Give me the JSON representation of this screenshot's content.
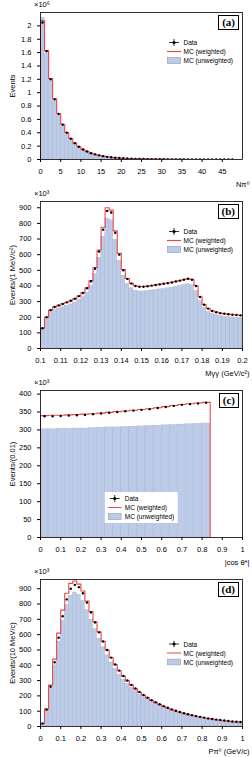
{
  "chart_data": [
    {
      "type": "histogram",
      "panel_label": "(a)",
      "y_multiplier": "×10⁶",
      "x_label": "Nπ⁰",
      "y_label": "Events",
      "xlim": [
        0,
        50
      ],
      "xticks": [
        0,
        5,
        10,
        15,
        20,
        25,
        30,
        35,
        40,
        45
      ],
      "ylim": [
        0,
        2.2
      ],
      "yticks": [
        0,
        0.2,
        0.4,
        0.6,
        0.8,
        1,
        1.2,
        1.4,
        1.6,
        1.8,
        2
      ],
      "grid": false,
      "legend": "upper right",
      "bins": [
        0,
        1,
        2,
        3,
        4,
        5,
        6,
        7,
        8,
        9,
        10,
        11,
        12,
        13,
        14,
        15,
        16,
        17,
        18,
        19,
        20,
        21,
        22,
        23,
        24,
        25,
        26,
        27,
        28,
        29,
        30,
        31,
        32,
        33,
        34,
        35,
        36,
        37,
        38,
        39,
        40,
        41,
        42,
        43,
        44,
        45,
        46,
        47,
        48
      ],
      "series": [
        {
          "name": "Data",
          "type": "scatter",
          "marker": "circle",
          "color": "#000000",
          "values": [
            2.05,
            1.62,
            1.2,
            0.9,
            0.68,
            0.52,
            0.4,
            0.31,
            0.245,
            0.19,
            0.15,
            0.12,
            0.095,
            0.077,
            0.062,
            0.05,
            0.04,
            0.033,
            0.027,
            0.022,
            0.018,
            0.015,
            0.012,
            0.01,
            0.0085,
            0.007,
            0.006,
            0.005,
            0.0042,
            0.0035,
            0.003,
            0.0025,
            0.002,
            0.0017,
            0.0014,
            0.0012,
            0.001,
            0.0008,
            0.0007,
            0.0006,
            0.0005,
            0.0004,
            0.0003,
            0.00025,
            0.0002,
            0.00015,
            0.0001,
            0.0001
          ]
        },
        {
          "name": "MC (weighted)",
          "type": "line",
          "line_style": "solid",
          "color": "#e8474b",
          "values": [
            2.08,
            1.63,
            1.21,
            0.91,
            0.685,
            0.525,
            0.405,
            0.315,
            0.248,
            0.193,
            0.152,
            0.122,
            0.097,
            0.078,
            0.063,
            0.051,
            0.041,
            0.034,
            0.028,
            0.023,
            0.019,
            0.015,
            0.012,
            0.01,
            0.0085,
            0.007,
            0.006,
            0.005,
            0.0042,
            0.0035,
            0.003,
            0.0025,
            0.002,
            0.0017,
            0.0014,
            0.0012,
            0.001,
            0.0008,
            0.0007,
            0.0006,
            0.0005,
            0.0004,
            0.0003,
            0.00025,
            0.0002,
            0.00015,
            0.0001,
            0.0001
          ]
        },
        {
          "name": "MC (unweighted)",
          "type": "bar",
          "color": "#bccbe8",
          "values": [
            2.12,
            1.58,
            1.17,
            0.87,
            0.65,
            0.49,
            0.375,
            0.29,
            0.228,
            0.176,
            0.138,
            0.11,
            0.087,
            0.07,
            0.056,
            0.045,
            0.036,
            0.03,
            0.024,
            0.02,
            0.016,
            0.013,
            0.011,
            0.009,
            0.0075,
            0.0062,
            0.0052,
            0.0044,
            0.0037,
            0.0031,
            0.0026,
            0.0022,
            0.0018,
            0.0015,
            0.0012,
            0.001,
            0.0009,
            0.0007,
            0.0006,
            0.0005,
            0.0004,
            0.0003,
            0.00025,
            0.0002,
            0.00015,
            0.0001,
            0.0001,
            0.0001
          ]
        }
      ]
    },
    {
      "type": "histogram",
      "panel_label": "(b)",
      "y_multiplier": "×10³",
      "x_label": "Mγγ (GeV/c²)",
      "y_label": "Events/(1 MeV/c²)",
      "xlim": [
        0.1,
        0.2
      ],
      "xticks": [
        0.1,
        0.11,
        0.12,
        0.13,
        0.14,
        0.15,
        0.16,
        0.17,
        0.18,
        0.19,
        0.2
      ],
      "ylim": [
        0,
        940
      ],
      "yticks": [
        0,
        100,
        200,
        300,
        400,
        500,
        600,
        700,
        800,
        900
      ],
      "grid": false,
      "legend": "upper right",
      "bins": [
        0.1,
        0.102,
        0.104,
        0.106,
        0.108,
        0.11,
        0.112,
        0.114,
        0.116,
        0.118,
        0.12,
        0.122,
        0.124,
        0.126,
        0.128,
        0.13,
        0.132,
        0.134,
        0.136,
        0.138,
        0.14,
        0.142,
        0.144,
        0.146,
        0.148,
        0.15,
        0.152,
        0.154,
        0.156,
        0.158,
        0.16,
        0.162,
        0.164,
        0.166,
        0.168,
        0.17,
        0.172,
        0.174,
        0.176,
        0.178,
        0.18,
        0.182,
        0.184,
        0.186,
        0.188,
        0.19,
        0.192,
        0.194,
        0.196,
        0.198,
        0.2
      ],
      "series": [
        {
          "name": "Data",
          "type": "scatter",
          "marker": "circle",
          "color": "#000000",
          "values": [
            130,
            200,
            245,
            265,
            275,
            285,
            295,
            305,
            318,
            335,
            355,
            385,
            430,
            510,
            620,
            760,
            880,
            870,
            740,
            600,
            500,
            445,
            415,
            400,
            395,
            395,
            398,
            402,
            406,
            410,
            414,
            418,
            422,
            428,
            434,
            440,
            446,
            440,
            400,
            330,
            280,
            255,
            240,
            232,
            226,
            222,
            219,
            216,
            214,
            212
          ]
        },
        {
          "name": "MC (weighted)",
          "type": "line",
          "line_style": "solid",
          "color": "#e8474b",
          "values": [
            130,
            200,
            246,
            266,
            276,
            286,
            296,
            306,
            319,
            336,
            357,
            388,
            435,
            518,
            630,
            775,
            900,
            885,
            752,
            608,
            505,
            448,
            417,
            401,
            396,
            396,
            399,
            403,
            407,
            411,
            415,
            419,
            423,
            429,
            435,
            441,
            447,
            441,
            401,
            331,
            281,
            256,
            241,
            233,
            227,
            223,
            220,
            217,
            215,
            213
          ]
        },
        {
          "name": "MC (unweighted)",
          "type": "bar",
          "color": "#bccbe8",
          "values": [
            120,
            185,
            228,
            246,
            255,
            264,
            273,
            282,
            294,
            310,
            329,
            357,
            400,
            476,
            580,
            715,
            830,
            820,
            695,
            562,
            466,
            413,
            385,
            370,
            365,
            365,
            367,
            371,
            374,
            378,
            381,
            385,
            389,
            394,
            400,
            405,
            411,
            405,
            368,
            304,
            258,
            235,
            221,
            214,
            208,
            204,
            201,
            199,
            197,
            195
          ]
        }
      ]
    },
    {
      "type": "histogram",
      "panel_label": "(c)",
      "y_multiplier": "×10³",
      "x_label": "|cos θ*|",
      "y_label": "Events/(0.01)",
      "xlim": [
        0,
        1
      ],
      "xticks": [
        0,
        0.1,
        0.2,
        0.3,
        0.4,
        0.5,
        0.6,
        0.7,
        0.8,
        0.9,
        1
      ],
      "ylim": [
        0,
        410
      ],
      "yticks": [
        0,
        50,
        100,
        150,
        200,
        250,
        300,
        350,
        400
      ],
      "grid": false,
      "legend": "lower center",
      "bins": [
        0,
        0.04,
        0.08,
        0.12,
        0.16,
        0.2,
        0.24,
        0.28,
        0.32,
        0.36,
        0.4,
        0.44,
        0.48,
        0.52,
        0.56,
        0.6,
        0.64,
        0.68,
        0.72,
        0.76,
        0.8,
        0.84
      ],
      "series": [
        {
          "name": "Data",
          "type": "scatter",
          "marker": "circle",
          "color": "#000000",
          "values": [
            338,
            338,
            339,
            340,
            341,
            342,
            344,
            346,
            348,
            350,
            352,
            354,
            356,
            358,
            361,
            364,
            367,
            370,
            372,
            374,
            376
          ]
        },
        {
          "name": "MC (weighted)",
          "type": "line",
          "line_style": "solid",
          "color": "#e8474b",
          "values": [
            340,
            341,
            341,
            342,
            343,
            344,
            345,
            347,
            349,
            351,
            353,
            355,
            357,
            359,
            362,
            365,
            368,
            371,
            373,
            375,
            377
          ]
        },
        {
          "name": "MC (unweighted)",
          "type": "bar",
          "color": "#bccbe8",
          "values": [
            302,
            302,
            303,
            303,
            304,
            304,
            305,
            306,
            307,
            307,
            308,
            309,
            310,
            311,
            312,
            313,
            314,
            315,
            316,
            317,
            318
          ]
        }
      ]
    },
    {
      "type": "histogram",
      "panel_label": "(d)",
      "y_multiplier": "×10³",
      "x_label": "Pπ⁰ (GeV/c)",
      "y_label": "Events/(10 MeV/c)",
      "xlim": [
        0,
        1
      ],
      "xticks": [
        0,
        0.1,
        0.2,
        0.3,
        0.4,
        0.5,
        0.6,
        0.7,
        0.8,
        0.9,
        1
      ],
      "ylim": [
        0,
        960
      ],
      "yticks": [
        0,
        100,
        200,
        300,
        400,
        500,
        600,
        700,
        800,
        900
      ],
      "grid": false,
      "legend": "center right",
      "bins": [
        0,
        0.02,
        0.04,
        0.06,
        0.08,
        0.1,
        0.12,
        0.14,
        0.16,
        0.18,
        0.2,
        0.22,
        0.24,
        0.26,
        0.28,
        0.3,
        0.32,
        0.34,
        0.36,
        0.38,
        0.4,
        0.42,
        0.44,
        0.46,
        0.48,
        0.5,
        0.52,
        0.54,
        0.56,
        0.58,
        0.6,
        0.62,
        0.64,
        0.66,
        0.68,
        0.7,
        0.72,
        0.74,
        0.76,
        0.78,
        0.8,
        0.82,
        0.84,
        0.86,
        0.88,
        0.9,
        0.92,
        0.94,
        0.96,
        0.98,
        1
      ],
      "series": [
        {
          "name": "Data",
          "type": "scatter",
          "marker": "circle",
          "color": "#000000",
          "values": [
            20,
            110,
            260,
            420,
            580,
            720,
            830,
            900,
            925,
            910,
            870,
            810,
            745,
            680,
            615,
            555,
            500,
            450,
            405,
            365,
            330,
            300,
            272,
            248,
            226,
            206,
            188,
            172,
            158,
            145,
            133,
            122,
            112,
            103,
            95,
            87,
            80,
            74,
            68,
            63,
            58,
            53,
            49,
            45,
            42,
            39,
            36,
            33,
            31,
            29
          ]
        },
        {
          "name": "MC (weighted)",
          "type": "line",
          "line_style": "solid",
          "color": "#e8474b",
          "values": [
            20,
            115,
            270,
            440,
            610,
            760,
            870,
            935,
            950,
            930,
            885,
            820,
            750,
            683,
            618,
            556,
            500,
            449,
            404,
            364,
            329,
            298,
            270,
            246,
            224,
            204,
            186,
            170,
            156,
            143,
            131,
            120,
            110,
            101,
            93,
            86,
            79,
            73,
            67,
            62,
            57,
            52,
            48,
            44,
            41,
            38,
            35,
            32,
            30,
            28
          ]
        },
        {
          "name": "MC (unweighted)",
          "type": "bar",
          "color": "#bccbe8",
          "values": [
            18,
            100,
            245,
            400,
            555,
            690,
            795,
            855,
            875,
            860,
            820,
            760,
            697,
            635,
            574,
            517,
            465,
            418,
            376,
            339,
            306,
            278,
            252,
            230,
            210,
            191,
            174,
            159,
            146,
            134,
            123,
            113,
            104,
            95,
            88,
            81,
            74,
            68,
            63,
            58,
            54,
            49,
            45,
            42,
            39,
            36,
            33,
            31,
            29,
            27
          ]
        }
      ]
    }
  ]
}
